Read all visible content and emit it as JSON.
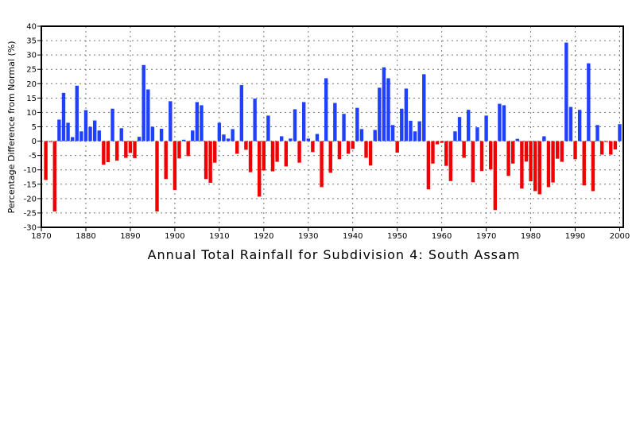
{
  "chart_data": {
    "type": "bar",
    "title": "Annual Total Rainfall for Subdivision 4: South Assam",
    "xlabel": "",
    "ylabel": "Percentage Difference from Normal (%)",
    "xlim": [
      1870,
      2001
    ],
    "ylim": [
      -30,
      40
    ],
    "xticks": [
      1870,
      1880,
      1890,
      1900,
      1910,
      1920,
      1930,
      1940,
      1950,
      1960,
      1970,
      1980,
      1990,
      2000
    ],
    "yticks": [
      -30,
      -25,
      -20,
      -15,
      -10,
      -5,
      0,
      5,
      10,
      15,
      20,
      25,
      30,
      35,
      40
    ],
    "grid": true,
    "colors": {
      "positive": "#2040ff",
      "negative": "#f00000"
    },
    "start_year": 1871,
    "values": [
      -13.5,
      -0.2,
      -24.5,
      7.5,
      16.8,
      6.4,
      1.4,
      19.3,
      3.4,
      10.8,
      5,
      7.2,
      3.7,
      -8.2,
      -7.3,
      11.3,
      -6.8,
      4.5,
      -5.8,
      -4.1,
      -5.9,
      1.5,
      26.5,
      18,
      5,
      -24.5,
      4.3,
      -13.2,
      13.9,
      -17,
      -6,
      0.5,
      -5.2,
      3.7,
      13.6,
      12.5,
      -13.2,
      -14.5,
      -7.5,
      6.4,
      2.3,
      0.9,
      4.2,
      -4.4,
      19.5,
      -3,
      -10.8,
      14.8,
      -19.3,
      -10.2,
      8.9,
      -10.5,
      -7.2,
      1.7,
      -8.8,
      0.9,
      11.1,
      -7.5,
      13.6,
      0.9,
      -3.8,
      2.5,
      -16,
      21.9,
      -11,
      13.3,
      -6.3,
      9.5,
      -4.4,
      -2.7,
      11.6,
      4.2,
      -5.8,
      -8.5,
      3.9,
      18.6,
      25.7,
      21.9,
      5.6,
      -4,
      11.3,
      18.3,
      7.1,
      3.4,
      6.9,
      23.3,
      -16.8,
      -7.8,
      -1.1,
      -0.6,
      -8.6,
      -13.9,
      3.4,
      8.4,
      -5.8,
      10.9,
      -14.3,
      4.8,
      -10.4,
      8.9,
      -9.8,
      -24,
      13,
      12.5,
      -12.1,
      -7.8,
      0.8,
      -16.5,
      -7.1,
      -14,
      -17.4,
      -18.5,
      1.7,
      -16,
      -14.4,
      -6.1,
      -7.2,
      34.3,
      11.9,
      -6.3,
      10.9,
      -15.4,
      27.1,
      -17.4,
      5.6,
      -4.7,
      -0.2,
      -4.7,
      -2.9,
      5.9
    ]
  }
}
